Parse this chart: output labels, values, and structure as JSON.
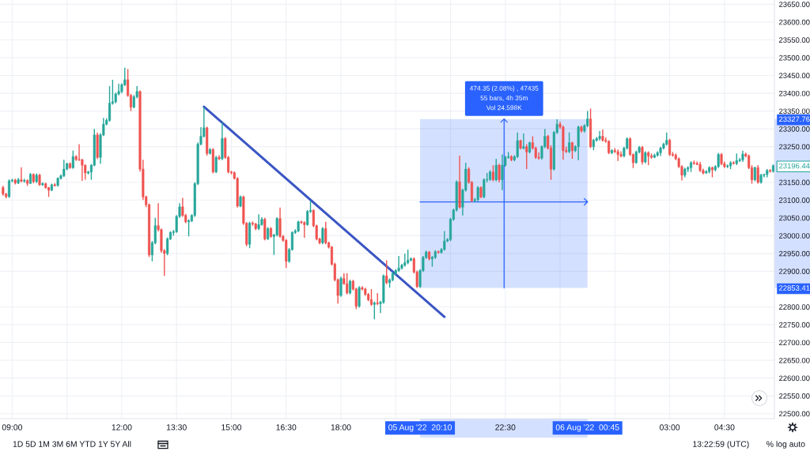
{
  "chart_data": {
    "type": "candlestick",
    "x": [
      "2022-08-05T08:45",
      "2022-08-05T08:50",
      "2022-08-05T08:55",
      "2022-08-05T09:00",
      "2022-08-05T09:05",
      "2022-08-05T09:10",
      "2022-08-05T09:15",
      "2022-08-05T09:20",
      "2022-08-05T09:25",
      "2022-08-05T09:30",
      "2022-08-05T09:35",
      "2022-08-05T09:40",
      "2022-08-05T09:45",
      "2022-08-05T09:50",
      "2022-08-05T09:55",
      "2022-08-05T10:00",
      "2022-08-05T10:05",
      "2022-08-05T10:10",
      "2022-08-05T10:15",
      "2022-08-05T10:20",
      "2022-08-05T10:25",
      "2022-08-05T10:30",
      "2022-08-05T10:35",
      "2022-08-05T10:40",
      "2022-08-05T10:45",
      "2022-08-05T10:50",
      "2022-08-05T10:55",
      "2022-08-05T11:00",
      "2022-08-05T11:05",
      "2022-08-05T11:10",
      "2022-08-05T11:15",
      "2022-08-05T11:20",
      "2022-08-05T11:25",
      "2022-08-05T11:30",
      "2022-08-05T11:35",
      "2022-08-05T11:40",
      "2022-08-05T11:45",
      "2022-08-05T11:50",
      "2022-08-05T11:55",
      "2022-08-05T12:00",
      "2022-08-05T12:05",
      "2022-08-05T12:10",
      "2022-08-05T12:15",
      "2022-08-05T12:20",
      "2022-08-05T12:25",
      "2022-08-05T12:30",
      "2022-08-05T12:35",
      "2022-08-05T12:40",
      "2022-08-05T12:45",
      "2022-08-05T12:50",
      "2022-08-05T12:55",
      "2022-08-05T13:00",
      "2022-08-05T13:05",
      "2022-08-05T13:10",
      "2022-08-05T13:15",
      "2022-08-05T13:20",
      "2022-08-05T13:25",
      "2022-08-05T13:30",
      "2022-08-05T13:35",
      "2022-08-05T13:40",
      "2022-08-05T13:45",
      "2022-08-05T13:50",
      "2022-08-05T13:55",
      "2022-08-05T14:00",
      "2022-08-05T14:05",
      "2022-08-05T14:10",
      "2022-08-05T14:15",
      "2022-08-05T14:20",
      "2022-08-05T14:25",
      "2022-08-05T14:30",
      "2022-08-05T14:35",
      "2022-08-05T14:40",
      "2022-08-05T14:45",
      "2022-08-05T14:50",
      "2022-08-05T14:55",
      "2022-08-05T15:00",
      "2022-08-05T15:05",
      "2022-08-05T15:10",
      "2022-08-05T15:15",
      "2022-08-05T15:20",
      "2022-08-05T15:25",
      "2022-08-05T15:30",
      "2022-08-05T15:35",
      "2022-08-05T15:40",
      "2022-08-05T15:45",
      "2022-08-05T15:50",
      "2022-08-05T15:55",
      "2022-08-05T16:00",
      "2022-08-05T16:05",
      "2022-08-05T16:10",
      "2022-08-05T16:15",
      "2022-08-05T16:20",
      "2022-08-05T16:25",
      "2022-08-05T16:30",
      "2022-08-05T16:35",
      "2022-08-05T16:40",
      "2022-08-05T16:45",
      "2022-08-05T16:50",
      "2022-08-05T16:55",
      "2022-08-05T17:00",
      "2022-08-05T17:05",
      "2022-08-05T17:10",
      "2022-08-05T17:15",
      "2022-08-05T17:20",
      "2022-08-05T17:25",
      "2022-08-05T17:30",
      "2022-08-05T17:35",
      "2022-08-05T17:40",
      "2022-08-05T17:45",
      "2022-08-05T17:50",
      "2022-08-05T17:55",
      "2022-08-05T18:00",
      "2022-08-05T18:05",
      "2022-08-05T18:10",
      "2022-08-05T18:15",
      "2022-08-05T18:20",
      "2022-08-05T18:25",
      "2022-08-05T18:30",
      "2022-08-05T18:35",
      "2022-08-05T18:40",
      "2022-08-05T18:45",
      "2022-08-05T18:50",
      "2022-08-05T18:55",
      "2022-08-05T19:00",
      "2022-08-05T19:05",
      "2022-08-05T19:10",
      "2022-08-05T19:15",
      "2022-08-05T19:20",
      "2022-08-05T19:25",
      "2022-08-05T19:30",
      "2022-08-05T19:35",
      "2022-08-05T19:40",
      "2022-08-05T19:45",
      "2022-08-05T19:50",
      "2022-08-05T19:55",
      "2022-08-05T20:00",
      "2022-08-05T20:05",
      "2022-08-05T20:10",
      "2022-08-05T20:15",
      "2022-08-05T20:20",
      "2022-08-05T20:25",
      "2022-08-05T20:30",
      "2022-08-05T20:35",
      "2022-08-05T20:40",
      "2022-08-05T20:45",
      "2022-08-05T20:50",
      "2022-08-05T20:55",
      "2022-08-05T21:00",
      "2022-08-05T21:05",
      "2022-08-05T21:10",
      "2022-08-05T21:15",
      "2022-08-05T21:20",
      "2022-08-05T21:25",
      "2022-08-05T21:30",
      "2022-08-05T21:35",
      "2022-08-05T21:40",
      "2022-08-05T21:45",
      "2022-08-05T21:50",
      "2022-08-05T21:55",
      "2022-08-05T22:00",
      "2022-08-05T22:05",
      "2022-08-05T22:10",
      "2022-08-05T22:15",
      "2022-08-05T22:20",
      "2022-08-05T22:25",
      "2022-08-05T22:30",
      "2022-08-05T22:35",
      "2022-08-05T22:40",
      "2022-08-05T22:45",
      "2022-08-05T22:50",
      "2022-08-05T22:55",
      "2022-08-05T23:00",
      "2022-08-05T23:05",
      "2022-08-05T23:10",
      "2022-08-05T23:15",
      "2022-08-05T23:20",
      "2022-08-05T23:25",
      "2022-08-05T23:30",
      "2022-08-05T23:35",
      "2022-08-05T23:40",
      "2022-08-05T23:45",
      "2022-08-05T23:50",
      "2022-08-05T23:55",
      "2022-08-06T00:00",
      "2022-08-06T00:05",
      "2022-08-06T00:10",
      "2022-08-06T00:15",
      "2022-08-06T00:20",
      "2022-08-06T00:25",
      "2022-08-06T00:30",
      "2022-08-06T00:35",
      "2022-08-06T00:40",
      "2022-08-06T00:45",
      "2022-08-06T00:50",
      "2022-08-06T00:55",
      "2022-08-06T01:00",
      "2022-08-06T01:05",
      "2022-08-06T01:10",
      "2022-08-06T01:15",
      "2022-08-06T01:20",
      "2022-08-06T01:25",
      "2022-08-06T01:30",
      "2022-08-06T01:35",
      "2022-08-06T01:40",
      "2022-08-06T01:45",
      "2022-08-06T01:50",
      "2022-08-06T01:55",
      "2022-08-06T02:00",
      "2022-08-06T02:05",
      "2022-08-06T02:10",
      "2022-08-06T02:15",
      "2022-08-06T02:20",
      "2022-08-06T02:25",
      "2022-08-06T02:30",
      "2022-08-06T02:35",
      "2022-08-06T02:40",
      "2022-08-06T02:45",
      "2022-08-06T02:50",
      "2022-08-06T02:55",
      "2022-08-06T03:00",
      "2022-08-06T03:05",
      "2022-08-06T03:10",
      "2022-08-06T03:15",
      "2022-08-06T03:20",
      "2022-08-06T03:25",
      "2022-08-06T03:30",
      "2022-08-06T03:35",
      "2022-08-06T03:40",
      "2022-08-06T03:45",
      "2022-08-06T03:50",
      "2022-08-06T03:55",
      "2022-08-06T04:00",
      "2022-08-06T04:05",
      "2022-08-06T04:10",
      "2022-08-06T04:15",
      "2022-08-06T04:20",
      "2022-08-06T04:25",
      "2022-08-06T04:30",
      "2022-08-06T04:35",
      "2022-08-06T04:40",
      "2022-08-06T04:45",
      "2022-08-06T04:50",
      "2022-08-06T04:55",
      "2022-08-06T05:00",
      "2022-08-06T05:05",
      "2022-08-06T05:10",
      "2022-08-06T05:15",
      "2022-08-06T05:20",
      "2022-08-06T05:25",
      "2022-08-06T05:30",
      "2022-08-06T05:35",
      "2022-08-06T05:40",
      "2022-08-06T05:45",
      "2022-08-06T05:50"
    ],
    "ohlc": [
      [
        23135,
        23140,
        23112,
        23117
      ],
      [
        23117,
        23120,
        23105,
        23110
      ],
      [
        23110,
        23158,
        23106,
        23154
      ],
      [
        23154,
        23160,
        23150,
        23156
      ],
      [
        23156,
        23160,
        23144,
        23148
      ],
      [
        23148,
        23162,
        23145,
        23157
      ],
      [
        23157,
        23192,
        23150,
        23153
      ],
      [
        23153,
        23160,
        23149,
        23155
      ],
      [
        23155,
        23158,
        23140,
        23147
      ],
      [
        23147,
        23176,
        23145,
        23172
      ],
      [
        23172,
        23175,
        23147,
        23152
      ],
      [
        23152,
        23175,
        23148,
        23170
      ],
      [
        23170,
        23174,
        23140,
        23143
      ],
      [
        23143,
        23150,
        23140,
        23146
      ],
      [
        23146,
        23149,
        23132,
        23135
      ],
      [
        23135,
        23137,
        23109,
        23128
      ],
      [
        23128,
        23146,
        23125,
        23143
      ],
      [
        23143,
        23147,
        23138,
        23141
      ],
      [
        23141,
        23164,
        23138,
        23161
      ],
      [
        23161,
        23172,
        23158,
        23168
      ],
      [
        23168,
        23213,
        23165,
        23187
      ],
      [
        23187,
        23205,
        23184,
        23202
      ],
      [
        23202,
        23206,
        23188,
        23191
      ],
      [
        23191,
        23239,
        23188,
        23222
      ],
      [
        23222,
        23226,
        23210,
        23214
      ],
      [
        23214,
        23257,
        23210,
        23213
      ],
      [
        23213,
        23216,
        23154,
        23198
      ],
      [
        23198,
        23200,
        23157,
        23176
      ],
      [
        23176,
        23182,
        23172,
        23179
      ],
      [
        23179,
        23201,
        23157,
        23198
      ],
      [
        23198,
        23300,
        23195,
        23283
      ],
      [
        23283,
        23290,
        23215,
        23220
      ],
      [
        23220,
        23288,
        23202,
        23283
      ],
      [
        23283,
        23331,
        23280,
        23313
      ],
      [
        23313,
        23330,
        23310,
        23324
      ],
      [
        23324,
        23420,
        23320,
        23372
      ],
      [
        23372,
        23438,
        23368,
        23376
      ],
      [
        23376,
        23402,
        23372,
        23398
      ],
      [
        23398,
        23427,
        23394,
        23405
      ],
      [
        23405,
        23428,
        23400,
        23424
      ],
      [
        23424,
        23472,
        23420,
        23438
      ],
      [
        23438,
        23468,
        23390,
        23394
      ],
      [
        23394,
        23398,
        23350,
        23361
      ],
      [
        23361,
        23395,
        23358,
        23390
      ],
      [
        23390,
        23420,
        23386,
        23405
      ],
      [
        23405,
        23408,
        23180,
        23187
      ],
      [
        23187,
        23213,
        23100,
        23109
      ],
      [
        23109,
        23112,
        23080,
        23087
      ],
      [
        23087,
        23090,
        22940,
        22946
      ],
      [
        22946,
        22985,
        22928,
        22980
      ],
      [
        22980,
        23050,
        22976,
        23028
      ],
      [
        23028,
        23091,
        23012,
        23017
      ],
      [
        23017,
        23020,
        22952,
        22958
      ],
      [
        22958,
        22962,
        22887,
        22950
      ],
      [
        22950,
        22995,
        22945,
        22991
      ],
      [
        22991,
        23012,
        22988,
        23009
      ],
      [
        23009,
        23016,
        23000,
        23011
      ],
      [
        23011,
        23058,
        23008,
        23054
      ],
      [
        23054,
        23091,
        23050,
        23081
      ],
      [
        23081,
        23106,
        23053,
        23057
      ],
      [
        23057,
        23061,
        23035,
        23039
      ],
      [
        23039,
        23046,
        22998,
        23042
      ],
      [
        23042,
        23060,
        23038,
        23057
      ],
      [
        23057,
        23150,
        23053,
        23146
      ],
      [
        23146,
        23262,
        23142,
        23257
      ],
      [
        23257,
        23305,
        23254,
        23279
      ],
      [
        23279,
        23361,
        23276,
        23303
      ],
      [
        23303,
        23306,
        23225,
        23231
      ],
      [
        23231,
        23246,
        23228,
        23242
      ],
      [
        23242,
        23246,
        23175,
        23179
      ],
      [
        23179,
        23224,
        23176,
        23220
      ],
      [
        23220,
        23226,
        23212,
        23216
      ],
      [
        23216,
        23318,
        23212,
        23273
      ],
      [
        23273,
        23277,
        23216,
        23220
      ],
      [
        23220,
        23224,
        23175,
        23179
      ],
      [
        23179,
        23182,
        23172,
        23177
      ],
      [
        23177,
        23180,
        23158,
        23161
      ],
      [
        23161,
        23164,
        23079,
        23083
      ],
      [
        23083,
        23113,
        23080,
        23109
      ],
      [
        23109,
        23112,
        23030,
        23035
      ],
      [
        23035,
        23038,
        22970,
        22976
      ],
      [
        22976,
        23039,
        22965,
        23035
      ],
      [
        23035,
        23040,
        23028,
        23033
      ],
      [
        23033,
        23036,
        23016,
        23020
      ],
      [
        23020,
        23060,
        23016,
        23031
      ],
      [
        23031,
        23052,
        23028,
        23046
      ],
      [
        23046,
        23050,
        22987,
        22991
      ],
      [
        22991,
        23024,
        22988,
        23020
      ],
      [
        23020,
        23024,
        22994,
        22998
      ],
      [
        22998,
        23005,
        22946,
        23002
      ],
      [
        23002,
        23052,
        22998,
        23048
      ],
      [
        23048,
        23079,
        22994,
        22998
      ],
      [
        22998,
        23002,
        22983,
        22987
      ],
      [
        22987,
        22990,
        22909,
        22928
      ],
      [
        22928,
        22965,
        22924,
        22961
      ],
      [
        22961,
        23012,
        22958,
        23009
      ],
      [
        23009,
        23018,
        23005,
        23013
      ],
      [
        23013,
        23042,
        23010,
        23039
      ],
      [
        23039,
        23042,
        23033,
        23037
      ],
      [
        23037,
        23040,
        22994,
        23031
      ],
      [
        23031,
        23072,
        23028,
        23068
      ],
      [
        23068,
        23098,
        23064,
        23071
      ],
      [
        23071,
        23074,
        23024,
        23028
      ],
      [
        23028,
        23031,
        22987,
        22991
      ],
      [
        22991,
        22994,
        22976,
        22980
      ],
      [
        22980,
        23024,
        22976,
        23020
      ],
      [
        23020,
        23039,
        22976,
        22980
      ],
      [
        22980,
        22983,
        22964,
        22968
      ],
      [
        22968,
        22971,
        22916,
        22920
      ],
      [
        22920,
        22924,
        22872,
        22876
      ],
      [
        22876,
        22880,
        22809,
        22832
      ],
      [
        22832,
        22885,
        22828,
        22880
      ],
      [
        22880,
        22895,
        22862,
        22865
      ],
      [
        22865,
        22895,
        22835,
        22839
      ],
      [
        22839,
        22876,
        22835,
        22872
      ],
      [
        22872,
        22876,
        22846,
        22850
      ],
      [
        22850,
        22854,
        22794,
        22802
      ],
      [
        22802,
        22858,
        22798,
        22854
      ],
      [
        22854,
        22858,
        22846,
        22850
      ],
      [
        22850,
        22854,
        22831,
        22835
      ],
      [
        22835,
        22839,
        22816,
        22820
      ],
      [
        22820,
        22850,
        22803,
        22807
      ],
      [
        22807,
        22815,
        22765,
        22811
      ],
      [
        22811,
        22839,
        22805,
        22809
      ],
      [
        22809,
        22817,
        22783,
        22813
      ],
      [
        22813,
        22891,
        22809,
        22887
      ],
      [
        22887,
        22931,
        22864,
        22868
      ],
      [
        22868,
        22880,
        22854,
        22876
      ],
      [
        22876,
        22898,
        22872,
        22894
      ],
      [
        22894,
        22906,
        22890,
        22902
      ],
      [
        22902,
        22943,
        22898,
        22909
      ],
      [
        22909,
        22921,
        22905,
        22917
      ],
      [
        22917,
        22950,
        22913,
        22924
      ],
      [
        22924,
        22961,
        22920,
        22931
      ],
      [
        22931,
        22939,
        22928,
        22935
      ],
      [
        22935,
        22939,
        22894,
        22898
      ],
      [
        22898,
        22902,
        22853,
        22857
      ],
      [
        22857,
        22906,
        22853,
        22902
      ],
      [
        22902,
        22943,
        22898,
        22939
      ],
      [
        22939,
        22958,
        22935,
        22954
      ],
      [
        22954,
        22957,
        22931,
        22935
      ],
      [
        22935,
        22943,
        22913,
        22939
      ],
      [
        22939,
        22959,
        22935,
        22955
      ],
      [
        22955,
        22958,
        22950,
        22953
      ],
      [
        22953,
        22965,
        22950,
        22961
      ],
      [
        22961,
        23013,
        22958,
        22985
      ],
      [
        22985,
        22993,
        22982,
        22989
      ],
      [
        22989,
        23050,
        22985,
        23046
      ],
      [
        23046,
        23076,
        23042,
        23072
      ],
      [
        23072,
        23155,
        23068,
        23151
      ],
      [
        23151,
        23225,
        23076,
        23080
      ],
      [
        23080,
        23132,
        23057,
        23128
      ],
      [
        23128,
        23205,
        23124,
        23187
      ],
      [
        23187,
        23192,
        23146,
        23150
      ],
      [
        23150,
        23153,
        23094,
        23098
      ],
      [
        23098,
        23106,
        23094,
        23101
      ],
      [
        23101,
        23139,
        23097,
        23135
      ],
      [
        23135,
        23139,
        23105,
        23109
      ],
      [
        23109,
        23161,
        23105,
        23157
      ],
      [
        23157,
        23176,
        23150,
        23158
      ],
      [
        23158,
        23184,
        23154,
        23179
      ],
      [
        23179,
        23198,
        23153,
        23157
      ],
      [
        23157,
        23216,
        23153,
        23198
      ],
      [
        23198,
        23202,
        23150,
        23157
      ],
      [
        23157,
        23228,
        23128,
        23198
      ],
      [
        23198,
        23224,
        23194,
        23220
      ],
      [
        23220,
        23235,
        23216,
        23222
      ],
      [
        23222,
        23226,
        23209,
        23213
      ],
      [
        23213,
        23226,
        23209,
        23222
      ],
      [
        23222,
        23290,
        23218,
        23267
      ],
      [
        23267,
        23270,
        23242,
        23246
      ],
      [
        23246,
        23287,
        23242,
        23250
      ],
      [
        23250,
        23257,
        23187,
        23235
      ],
      [
        23235,
        23264,
        23231,
        23261
      ],
      [
        23261,
        23279,
        23242,
        23246
      ],
      [
        23246,
        23250,
        23216,
        23220
      ],
      [
        23220,
        23234,
        23214,
        23218
      ],
      [
        23218,
        23254,
        23214,
        23250
      ],
      [
        23250,
        23300,
        23246,
        23279
      ],
      [
        23279,
        23283,
        23242,
        23246
      ],
      [
        23246,
        23254,
        23157,
        23187
      ],
      [
        23187,
        23294,
        23183,
        23290
      ],
      [
        23290,
        23327,
        23286,
        23313
      ],
      [
        23313,
        23320,
        23300,
        23305
      ],
      [
        23305,
        23309,
        23213,
        23239
      ],
      [
        23239,
        23250,
        23232,
        23236
      ],
      [
        23236,
        23290,
        23232,
        23261
      ],
      [
        23261,
        23264,
        23216,
        23239
      ],
      [
        23239,
        23254,
        23235,
        23250
      ],
      [
        23250,
        23309,
        23212,
        23305
      ],
      [
        23305,
        23309,
        23290,
        23294
      ],
      [
        23294,
        23313,
        23290,
        23309
      ],
      [
        23309,
        23350,
        23305,
        23327.76
      ],
      [
        23327.76,
        23357,
        23246,
        23250
      ],
      [
        23250,
        23272,
        23240,
        23268
      ],
      [
        23268,
        23277,
        23264,
        23273
      ],
      [
        23273,
        23294,
        23267,
        23279
      ],
      [
        23279,
        23298,
        23264,
        23268
      ],
      [
        23268,
        23276,
        23261,
        23265
      ],
      [
        23265,
        23268,
        23229,
        23233
      ],
      [
        23233,
        23243,
        23229,
        23239
      ],
      [
        23239,
        23246,
        23232,
        23236
      ],
      [
        23236,
        23242,
        23210,
        23228
      ],
      [
        23228,
        23237,
        23220,
        23224
      ],
      [
        23224,
        23250,
        23220,
        23246
      ],
      [
        23246,
        23276,
        23242,
        23272
      ],
      [
        23272,
        23276,
        23224,
        23228
      ],
      [
        23228,
        23231,
        23190,
        23205
      ],
      [
        23205,
        23239,
        23202,
        23235
      ],
      [
        23235,
        23252,
        23231,
        23248
      ],
      [
        23248,
        23252,
        23200,
        23207
      ],
      [
        23207,
        23237,
        23203,
        23233
      ],
      [
        23233,
        23237,
        23198,
        23224
      ],
      [
        23224,
        23231,
        23216,
        23220
      ],
      [
        23220,
        23230,
        23218,
        23226
      ],
      [
        23226,
        23237,
        23222,
        23233
      ],
      [
        23233,
        23250,
        23224,
        23246
      ],
      [
        23246,
        23261,
        23242,
        23257
      ],
      [
        23257,
        23290,
        23253,
        23268
      ],
      [
        23268,
        23272,
        23224,
        23228
      ],
      [
        23228,
        23235,
        23222,
        23226
      ],
      [
        23226,
        23231,
        23212,
        23216
      ],
      [
        23216,
        23220,
        23190,
        23194
      ],
      [
        23194,
        23198,
        23155,
        23170
      ],
      [
        23170,
        23191,
        23164,
        23187
      ],
      [
        23187,
        23195,
        23179,
        23191
      ],
      [
        23191,
        23209,
        23179,
        23205
      ],
      [
        23205,
        23211,
        23199,
        23203
      ],
      [
        23203,
        23208,
        23198,
        23200
      ],
      [
        23200,
        23207,
        23179,
        23183
      ],
      [
        23183,
        23188,
        23172,
        23176
      ],
      [
        23176,
        23184,
        23174,
        23180
      ],
      [
        23180,
        23195,
        23175,
        23191
      ],
      [
        23191,
        23194,
        23164,
        23185
      ],
      [
        23185,
        23198,
        23181,
        23194
      ],
      [
        23194,
        23232,
        23190,
        23228
      ],
      [
        23228,
        23232,
        23198,
        23202
      ],
      [
        23202,
        23208,
        23190,
        23194
      ],
      [
        23194,
        23200,
        23190,
        23196
      ],
      [
        23196,
        23209,
        23187,
        23205
      ],
      [
        23205,
        23209,
        23200,
        23203
      ],
      [
        23203,
        23231,
        23198,
        23211
      ],
      [
        23211,
        23218,
        23207,
        23213
      ],
      [
        23213,
        23239,
        23207,
        23229
      ],
      [
        23229,
        23233,
        23220,
        23224
      ],
      [
        23224,
        23228,
        23187,
        23191
      ],
      [
        23191,
        23198,
        23146,
        23157
      ],
      [
        23157,
        23194,
        23153,
        23191
      ],
      [
        23191,
        23198,
        23146,
        23150
      ],
      [
        23150,
        23174,
        23146,
        23170
      ],
      [
        23170,
        23174,
        23164,
        23172
      ],
      [
        23172,
        23187,
        23164,
        23183
      ],
      [
        23183,
        23187,
        23177,
        23181
      ],
      [
        23181,
        23200,
        23177,
        23196.44
      ]
    ],
    "colors": [
      "#ef5350",
      "#ef5350",
      "#26a69a",
      "#26a69a",
      "#ef5350",
      "#26a69a",
      "#ef5350",
      "#26a69a",
      "#ef5350",
      "#26a69a",
      "#ef5350",
      "#26a69a",
      "#ef5350",
      "#26a69a",
      "#ef5350",
      "#ef5350",
      "#26a69a",
      "#ef5350",
      "#26a69a",
      "#26a69a",
      "#26a69a",
      "#26a69a",
      "#ef5350",
      "#26a69a",
      "#ef5350",
      "#ef5350",
      "#ef5350",
      "#ef5350",
      "#26a69a",
      "#26a69a",
      "#26a69a",
      "#ef5350",
      "#26a69a",
      "#26a69a",
      "#26a69a",
      "#26a69a",
      "#26a69a",
      "#26a69a",
      "#26a69a",
      "#26a69a",
      "#26a69a",
      "#ef5350",
      "#ef5350",
      "#26a69a",
      "#26a69a",
      "#ef5350",
      "#ef5350",
      "#ef5350",
      "#ef5350",
      "#26a69a",
      "#26a69a",
      "#ef5350",
      "#ef5350",
      "#ef5350",
      "#26a69a",
      "#26a69a",
      "#26a69a",
      "#26a69a",
      "#26a69a",
      "#ef5350",
      "#ef5350",
      "#26a69a",
      "#26a69a",
      "#26a69a",
      "#26a69a",
      "#26a69a",
      "#26a69a",
      "#ef5350",
      "#26a69a",
      "#ef5350",
      "#26a69a",
      "#ef5350",
      "#26a69a",
      "#ef5350",
      "#ef5350",
      "#ef5350",
      "#ef5350",
      "#ef5350",
      "#26a69a",
      "#ef5350",
      "#ef5350",
      "#26a69a",
      "#ef5350",
      "#ef5350",
      "#26a69a",
      "#26a69a",
      "#ef5350",
      "#26a69a",
      "#ef5350",
      "#26a69a",
      "#26a69a",
      "#ef5350",
      "#ef5350",
      "#ef5350",
      "#26a69a",
      "#26a69a",
      "#26a69a",
      "#26a69a",
      "#ef5350",
      "#ef5350",
      "#26a69a",
      "#26a69a",
      "#ef5350",
      "#ef5350",
      "#ef5350",
      "#26a69a",
      "#ef5350",
      "#ef5350",
      "#ef5350",
      "#ef5350",
      "#ef5350",
      "#26a69a",
      "#ef5350",
      "#ef5350",
      "#26a69a",
      "#ef5350",
      "#ef5350",
      "#26a69a",
      "#ef5350",
      "#ef5350",
      "#ef5350",
      "#ef5350",
      "#26a69a",
      "#ef5350",
      "#26a69a",
      "#26a69a",
      "#ef5350",
      "#26a69a",
      "#26a69a",
      "#26a69a",
      "#26a69a",
      "#26a69a",
      "#26a69a",
      "#26a69a",
      "#26a69a",
      "#ef5350",
      "#ef5350",
      "#26a69a",
      "#26a69a",
      "#26a69a",
      "#ef5350",
      "#26a69a",
      "#26a69a",
      "#ef5350",
      "#26a69a",
      "#26a69a",
      "#26a69a",
      "#26a69a",
      "#26a69a",
      "#26a69a",
      "#ef5350",
      "#26a69a",
      "#26a69a",
      "#ef5350",
      "#ef5350",
      "#26a69a",
      "#26a69a",
      "#ef5350",
      "#26a69a",
      "#26a69a",
      "#26a69a",
      "#ef5350",
      "#26a69a",
      "#ef5350",
      "#26a69a",
      "#26a69a",
      "#26a69a",
      "#ef5350",
      "#26a69a",
      "#26a69a",
      "#ef5350",
      "#26a69a",
      "#ef5350",
      "#26a69a",
      "#ef5350",
      "#ef5350",
      "#ef5350",
      "#26a69a",
      "#26a69a",
      "#ef5350",
      "#ef5350",
      "#26a69a",
      "#26a69a",
      "#ef5350",
      "#ef5350",
      "#ef5350",
      "#26a69a",
      "#ef5350",
      "#26a69a",
      "#26a69a",
      "#ef5350",
      "#26a69a",
      "#26a69a",
      "#ef5350",
      "#26a69a",
      "#26a69a",
      "#26a69a",
      "#ef5350",
      "#ef5350",
      "#ef5350",
      "#26a69a",
      "#ef5350",
      "#ef5350",
      "#ef5350",
      "#26a69a",
      "#26a69a",
      "#ef5350",
      "#ef5350",
      "#26a69a",
      "#26a69a",
      "#ef5350",
      "#26a69a",
      "#ef5350",
      "#ef5350",
      "#26a69a",
      "#26a69a",
      "#26a69a",
      "#26a69a",
      "#26a69a",
      "#ef5350",
      "#ef5350",
      "#ef5350",
      "#ef5350",
      "#ef5350",
      "#26a69a",
      "#26a69a",
      "#26a69a",
      "#ef5350",
      "#ef5350",
      "#ef5350",
      "#ef5350",
      "#26a69a",
      "#26a69a",
      "#ef5350",
      "#26a69a",
      "#26a69a",
      "#ef5350",
      "#ef5350",
      "#26a69a",
      "#26a69a",
      "#ef5350",
      "#26a69a",
      "#26a69a",
      "#26a69a",
      "#ef5350",
      "#ef5350",
      "#ef5350",
      "#26a69a",
      "#ef5350",
      "#26a69a",
      "#26a69a",
      "#26a69a",
      "#ef5350",
      "#26a69a"
    ],
    "value_labels": [
      null,
      null,
      null,
      null,
      null,
      null,
      null,
      null,
      null,
      null,
      null,
      null,
      null,
      null,
      null,
      null,
      null,
      null,
      null,
      null,
      null,
      null,
      null,
      null,
      null,
      null,
      null,
      null,
      null,
      null,
      null,
      null,
      null,
      null,
      null,
      null,
      null,
      null,
      null,
      null,
      null,
      null,
      null,
      null,
      null,
      null,
      null,
      null,
      null,
      null,
      null,
      null,
      null,
      null,
      null,
      null,
      null,
      null,
      null,
      null,
      null,
      null,
      null,
      null,
      null,
      null,
      null,
      null,
      null,
      null,
      null,
      null,
      null,
      null,
      null,
      null,
      null,
      null,
      null,
      null,
      null,
      null,
      null,
      null,
      null,
      null,
      null,
      null,
      null,
      null,
      null,
      null,
      null,
      null,
      null,
      null,
      null,
      null,
      null,
      null,
      null,
      null,
      null,
      null,
      null,
      null,
      null,
      null,
      null,
      null,
      null,
      null,
      null,
      null,
      null,
      null,
      null,
      null,
      null,
      null,
      null,
      null,
      null,
      null,
      null,
      null,
      null,
      null,
      null,
      null,
      null,
      null,
      null,
      null,
      null,
      null,
      null,
      null,
      null,
      null,
      null,
      null,
      null,
      null,
      null,
      null,
      null,
      null,
      null,
      null,
      null,
      null,
      null,
      null,
      null,
      null,
      null,
      null,
      null,
      null,
      null,
      null,
      null,
      null,
      null,
      null,
      null,
      null,
      null,
      null,
      null,
      null,
      null,
      null,
      null,
      null,
      null,
      null,
      null,
      null,
      null,
      null,
      null,
      null,
      null,
      null,
      null,
      null,
      null,
      null,
      null,
      null,
      null,
      null,
      null,
      null,
      null,
      null,
      null,
      null,
      null,
      null,
      null,
      null,
      null,
      null,
      null,
      null,
      null,
      null,
      null,
      null,
      null,
      null,
      null,
      null,
      null,
      null,
      null,
      null,
      null,
      null,
      null,
      null,
      null,
      null,
      null,
      null,
      null,
      null,
      null,
      null,
      null,
      null,
      null,
      null,
      null,
      null,
      null,
      null,
      null,
      null,
      null,
      null,
      null,
      null,
      null,
      null,
      null,
      null,
      null,
      null,
      null,
      "23196.44"
    ],
    "series": [
      {
        "type": "line",
        "x": [
          "2022-08-05T14:15",
          "2022-08-05T20:50"
        ],
        "values": [
          23362,
          22772
        ],
        "color": "#3b56c4"
      },
      {
        "type": "line",
        "x": [
          "2022-08-05T20:10",
          "2022-08-06T00:45"
        ],
        "values": [
          23095,
          23095
        ],
        "lower": [
          22853.41,
          22853.41
        ],
        "upper": [
          23327.76,
          23327.76
        ],
        "color": "#2962ff"
      },
      {
        "type": "line",
        "x": [
          "2022-08-05T22:28",
          "2022-08-05T22:28"
        ],
        "values": [
          22853.41,
          23327.76
        ],
        "color": "#2962ff"
      }
    ],
    "xlim": [
      "2022-08-05T08:40",
      "2022-08-06T05:52"
    ],
    "ylim": [
      22486,
      23662
    ],
    "xticks": [
      {
        "value": "2022-08-05T09:00",
        "label": "09:00"
      },
      {
        "value": "2022-08-05T10:30",
        "label": null
      },
      {
        "value": "2022-08-05T12:00",
        "label": "12:00"
      },
      {
        "value": "2022-08-05T13:30",
        "label": "13:30"
      },
      {
        "value": "2022-08-05T15:00",
        "label": "15:00"
      },
      {
        "value": "2022-08-05T16:30",
        "label": "16:30"
      },
      {
        "value": "2022-08-05T18:00",
        "label": "18:00"
      },
      {
        "value": "2022-08-05T19:30",
        "label": null
      },
      {
        "value": "2022-08-05T20:10",
        "label": "05 Aug '22  20:10"
      },
      {
        "value": "2022-08-05T21:00",
        "label": null
      },
      {
        "value": "2022-08-05T22:30",
        "label": "22:30"
      },
      {
        "value": "2022-08-06T00:00",
        "label": null
      },
      {
        "value": "2022-08-06T00:45",
        "label": "06 Aug '22  00:45"
      },
      {
        "value": "2022-08-06T01:30",
        "label": null
      },
      {
        "value": "2022-08-06T03:00",
        "label": "03:00"
      },
      {
        "value": "2022-08-06T04:30",
        "label": "04:30"
      }
    ],
    "yticks": [
      {
        "value": 22500,
        "label": "22500.00"
      },
      {
        "value": 22550,
        "label": "22550.00"
      },
      {
        "value": 22600,
        "label": "22600.00"
      },
      {
        "value": 22650,
        "label": "22650.00"
      },
      {
        "value": 22700,
        "label": "22700.00"
      },
      {
        "value": 22750,
        "label": "22750.00"
      },
      {
        "value": 22800,
        "label": "22800.00"
      },
      {
        "value": 22853.41,
        "label": "22853.41"
      },
      {
        "value": 22900,
        "label": "22900.00"
      },
      {
        "value": 22950,
        "label": "22950.00"
      },
      {
        "value": 23000,
        "label": "23000.00"
      },
      {
        "value": 23050,
        "label": "23050.00"
      },
      {
        "value": 23100,
        "label": "23100.00"
      },
      {
        "value": 23150,
        "label": "23150.00"
      },
      {
        "value": 23250,
        "label": "23250.00"
      },
      {
        "value": 23300,
        "label": "23300.00"
      },
      {
        "value": 23327.76,
        "label": "23327.76"
      },
      {
        "value": 23350,
        "label": "23350.00"
      },
      {
        "value": 23400,
        "label": "23400.00"
      },
      {
        "value": 23450,
        "label": "23450.00"
      },
      {
        "value": 23500,
        "label": "23500.00"
      },
      {
        "value": 23550,
        "label": "23550.00"
      },
      {
        "value": 23600,
        "label": "23600.00"
      },
      {
        "value": 23650,
        "label": "23650.00"
      }
    ],
    "grid": true,
    "annotations": [
      {
        "text": "474.35 (2.08%) , 47435\n55 bars, 4h 35m\nVol 24.598K",
        "x": "2022-08-05T22:28",
        "y": 23327.76
      },
      "1D 5D 1M 3M 6M YTD 1Y 5Y All",
      "13:22:59 (UTC)",
      "% log auto"
    ]
  }
}
